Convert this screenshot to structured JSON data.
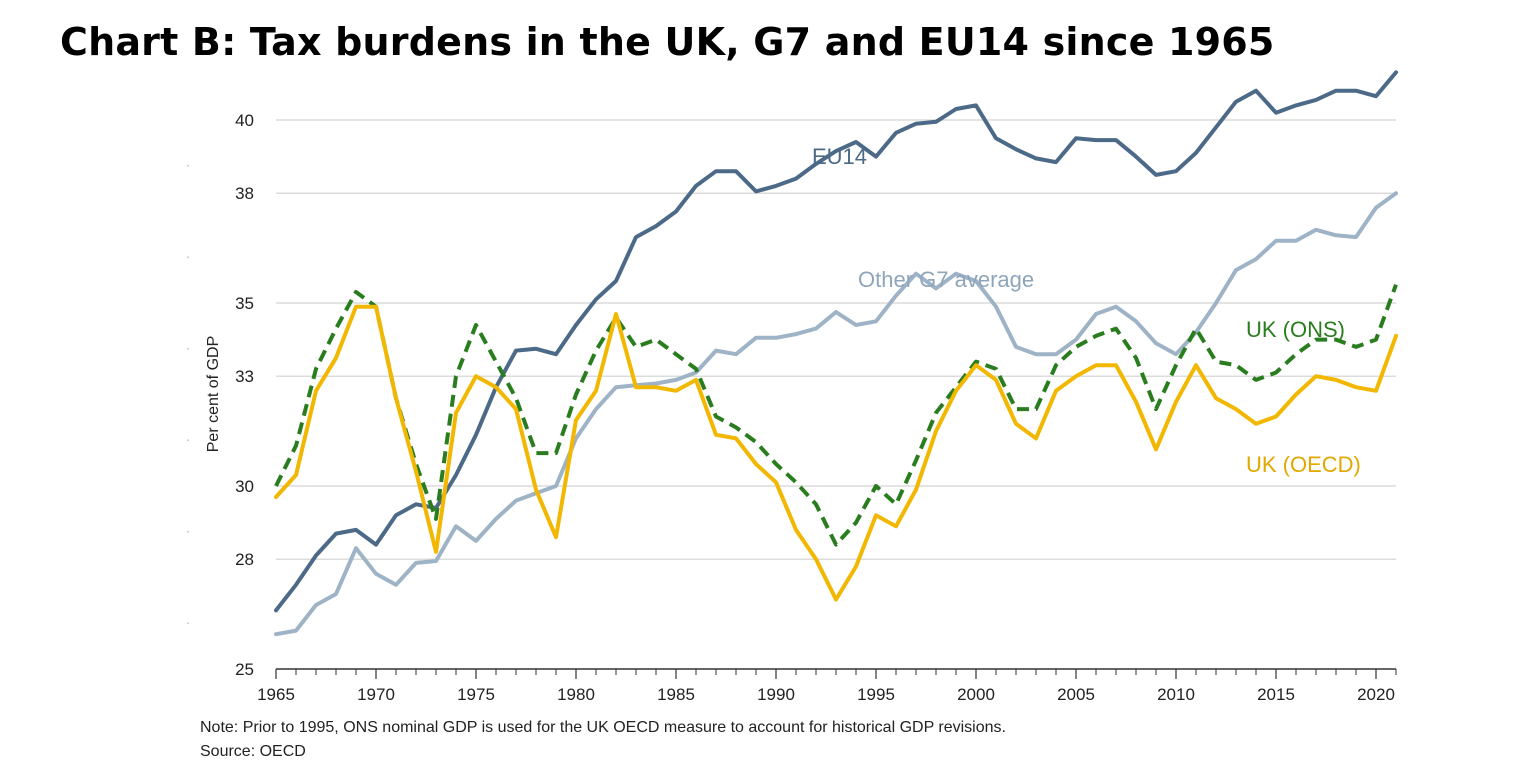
{
  "title": "Chart B: Tax burdens in the UK, G7 and EU14 since 1965",
  "note": "Note: Prior to 1995, ONS nominal GDP is used for the UK OECD measure to account for historical GDP revisions.",
  "source": "Source: OECD",
  "chart_data": {
    "type": "line",
    "ylabel": "Per cent of GDP",
    "ylim": [
      25,
      40
    ],
    "y_ticks": [
      25,
      28,
      30,
      33,
      35,
      38,
      40
    ],
    "y_tick_labels": [
      "25",
      "28",
      "30",
      "33",
      "35",
      "38",
      "40"
    ],
    "xlim": [
      1965,
      2021
    ],
    "x_ticks": [
      1965,
      1970,
      1975,
      1980,
      1985,
      1990,
      1995,
      2000,
      2005,
      2010,
      2015,
      2020
    ],
    "grid": true,
    "x": [
      1965,
      1966,
      1967,
      1968,
      1969,
      1970,
      1971,
      1972,
      1973,
      1974,
      1975,
      1976,
      1977,
      1978,
      1979,
      1980,
      1981,
      1982,
      1983,
      1984,
      1985,
      1986,
      1987,
      1988,
      1989,
      1990,
      1991,
      1992,
      1993,
      1994,
      1995,
      1996,
      1997,
      1998,
      1999,
      2000,
      2001,
      2002,
      2003,
      2004,
      2005,
      2006,
      2007,
      2008,
      2009,
      2010,
      2011,
      2012,
      2013,
      2014,
      2015,
      2016,
      2017,
      2018,
      2019,
      2020,
      2021
    ],
    "series": [
      {
        "name": "EU14",
        "color": "#4c6a88",
        "style": "solid",
        "values": [
          26.6,
          27.3,
          28.1,
          28.7,
          28.8,
          28.4,
          29.2,
          29.5,
          29.4,
          30.3,
          31.4,
          32.7,
          33.7,
          33.75,
          33.6,
          34.4,
          35.1,
          35.6,
          36.8,
          37.1,
          37.5,
          38.2,
          38.6,
          38.6,
          38.05,
          38.2,
          38.4,
          38.8,
          39.15,
          39.4,
          39.0,
          39.65,
          39.9,
          39.95,
          40.3,
          40.4,
          39.5,
          39.2,
          38.95,
          38.85,
          39.5,
          39.45,
          39.45,
          39.0,
          38.5,
          38.6,
          39.1,
          39.8,
          40.5,
          40.8,
          40.2,
          40.4,
          40.55,
          40.8,
          40.8,
          40.65,
          41.3
        ]
      },
      {
        "name": "Other G7 average",
        "color": "#9fb3c6",
        "style": "solid",
        "values": [
          25.95,
          26.05,
          26.75,
          27.05,
          28.3,
          27.6,
          27.3,
          27.9,
          27.95,
          28.9,
          28.5,
          29.1,
          29.6,
          29.8,
          30.0,
          31.3,
          32.1,
          32.7,
          32.75,
          32.8,
          32.9,
          33.1,
          33.7,
          33.6,
          34.05,
          34.05,
          34.15,
          34.3,
          34.75,
          34.4,
          34.5,
          35.2,
          35.8,
          35.4,
          35.8,
          35.6,
          34.9,
          33.8,
          33.6,
          33.6,
          34.0,
          34.7,
          34.9,
          34.5,
          33.9,
          33.6,
          34.2,
          35.0,
          35.9,
          36.2,
          36.7,
          36.7,
          37.0,
          36.85,
          36.8,
          37.6,
          38.0
        ]
      },
      {
        "name": "UK (ONS)",
        "color": "#2a7d1e",
        "style": "dashed",
        "values": [
          30.0,
          31.1,
          33.2,
          34.3,
          35.3,
          34.9,
          32.4,
          30.6,
          29.1,
          33.0,
          34.4,
          33.4,
          32.4,
          30.9,
          30.9,
          32.5,
          33.7,
          34.6,
          33.8,
          34.0,
          33.6,
          33.2,
          31.9,
          31.6,
          31.2,
          30.6,
          30.1,
          29.5,
          28.4,
          29.0,
          30.0,
          29.5,
          30.7,
          32.0,
          32.7,
          33.4,
          33.2,
          32.1,
          32.1,
          33.3,
          33.8,
          34.1,
          34.3,
          33.5,
          32.1,
          33.3,
          34.3,
          33.4,
          33.3,
          32.9,
          33.1,
          33.6,
          34.0,
          34.0,
          33.8,
          34.0,
          35.5
        ]
      },
      {
        "name": "UK (OECD)",
        "color": "#f2b700",
        "style": "solid",
        "values": [
          29.7,
          30.3,
          32.6,
          33.5,
          34.9,
          34.9,
          32.4,
          30.4,
          28.2,
          32.0,
          33.0,
          32.7,
          32.1,
          29.9,
          28.6,
          31.8,
          32.6,
          34.7,
          32.7,
          32.7,
          32.6,
          32.9,
          31.4,
          31.3,
          30.6,
          30.1,
          28.8,
          28.0,
          26.9,
          27.8,
          29.2,
          28.9,
          29.9,
          31.5,
          32.6,
          33.3,
          32.9,
          31.7,
          31.3,
          32.6,
          33.0,
          33.3,
          33.3,
          32.3,
          31.0,
          32.3,
          33.3,
          32.4,
          32.1,
          31.7,
          31.9,
          32.5,
          33.0,
          32.9,
          32.7,
          32.6,
          34.1
        ]
      }
    ]
  }
}
